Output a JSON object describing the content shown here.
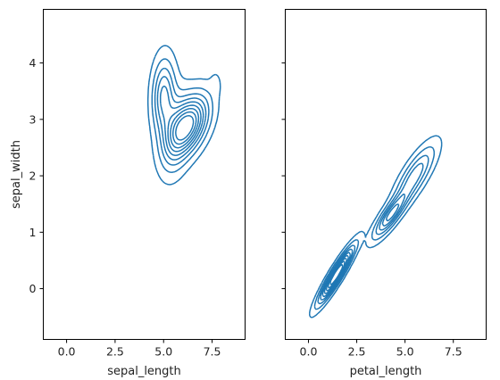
{
  "chart_data": [
    {
      "type": "kde-contour",
      "xlabel": "sepal_length",
      "ylabel": "sepal_width",
      "xlim": [
        -1.2,
        9.2
      ],
      "ylim": [
        -0.9,
        4.95
      ],
      "xticks": [
        0.0,
        2.5,
        5.0,
        7.5
      ],
      "xtick_labels": [
        "0.0",
        "2.5",
        "5.0",
        "7.5"
      ],
      "yticks": [
        0,
        1,
        2,
        3,
        4
      ],
      "ytick_labels": [
        "0",
        "1",
        "2",
        "3",
        "4"
      ],
      "shared_y": true,
      "color": "#1f77b4",
      "components": [
        {
          "cx": 5.0,
          "cy": 3.42,
          "sx": 0.38,
          "sy": 0.42,
          "rho": 0.1,
          "w": 0.5
        },
        {
          "cx": 6.3,
          "cy": 2.9,
          "sx": 0.65,
          "sy": 0.34,
          "rho": 0.45,
          "w": 0.9
        },
        {
          "cx": 5.6,
          "cy": 2.75,
          "sx": 0.5,
          "sy": 0.45,
          "rho": 0.3,
          "w": 0.35
        },
        {
          "cx": 7.7,
          "cy": 3.65,
          "sx": 0.2,
          "sy": 0.15,
          "rho": 0.0,
          "w": 0.06
        }
      ],
      "levels": [
        0.05,
        0.14,
        0.24,
        0.34,
        0.44,
        0.54,
        0.64,
        0.74,
        0.84
      ]
    },
    {
      "type": "kde-contour",
      "xlabel": "petal_length",
      "ylabel": "",
      "xlim": [
        -1.2,
        9.2
      ],
      "ylim": [
        -0.9,
        4.95
      ],
      "xticks": [
        0.0,
        2.5,
        5.0,
        7.5
      ],
      "xtick_labels": [
        "0.0",
        "2.5",
        "5.0",
        "7.5"
      ],
      "yticks": [
        0,
        1,
        2,
        3,
        4
      ],
      "ytick_labels": [],
      "shared_y": true,
      "color": "#1f77b4",
      "components": [
        {
          "cx": 1.45,
          "cy": 0.25,
          "sx": 0.55,
          "sy": 0.3,
          "rho": 0.93,
          "w": 1.0
        },
        {
          "cx": 4.25,
          "cy": 1.3,
          "sx": 0.55,
          "sy": 0.25,
          "rho": 0.85,
          "w": 0.55
        },
        {
          "cx": 5.5,
          "cy": 2.0,
          "sx": 0.65,
          "sy": 0.33,
          "rho": 0.8,
          "w": 0.4
        }
      ],
      "levels": [
        0.04,
        0.12,
        0.22,
        0.32,
        0.42,
        0.52,
        0.62,
        0.72,
        0.82
      ]
    }
  ]
}
